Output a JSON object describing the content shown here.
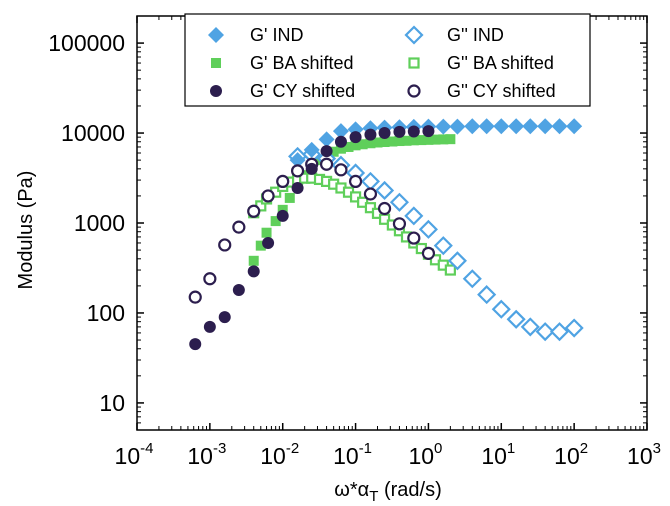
{
  "chart_data": {
    "type": "scatter",
    "xscale": "log",
    "yscale": "log",
    "xlim": [
      0.0001,
      1000
    ],
    "ylim": [
      5,
      200000
    ],
    "xlabel": "ω*α",
    "xlabel_sub": "T",
    "xlabel_unit": " (rad/s)",
    "ylabel": "Modulus (Pa)",
    "x_ticks": [
      {
        "value": 0.0001,
        "base": "10",
        "exp": "-4"
      },
      {
        "value": 0.001,
        "base": "10",
        "exp": "-3"
      },
      {
        "value": 0.01,
        "base": "10",
        "exp": "-2"
      },
      {
        "value": 0.1,
        "base": "10",
        "exp": "-1"
      },
      {
        "value": 1,
        "base": "10",
        "exp": "0"
      },
      {
        "value": 10,
        "base": "10",
        "exp": "1"
      },
      {
        "value": 100,
        "base": "10",
        "exp": "2"
      },
      {
        "value": 1000,
        "base": "10",
        "exp": "3"
      }
    ],
    "y_ticks": [
      {
        "value": 10,
        "label": "10"
      },
      {
        "value": 100,
        "label": "100"
      },
      {
        "value": 1000,
        "label": "1000"
      },
      {
        "value": 10000,
        "label": "10000"
      },
      {
        "value": 100000,
        "label": "100000"
      }
    ],
    "grid": false,
    "legend_position": "top",
    "series": [
      {
        "name": "G' IND",
        "marker": "diamond",
        "filled": true,
        "color": "#4fa3e3",
        "x": [
          0.016,
          0.025,
          0.04,
          0.063,
          0.1,
          0.16,
          0.25,
          0.4,
          0.63,
          1,
          1.6,
          2.5,
          4,
          6.3,
          10,
          16,
          25,
          40,
          63,
          100
        ],
        "y": [
          5000,
          6500,
          8500,
          10500,
          11000,
          11300,
          11500,
          11600,
          11700,
          11800,
          11800,
          11800,
          11900,
          11900,
          11900,
          11900,
          11900,
          11900,
          11900,
          11900
        ]
      },
      {
        "name": "G'' IND",
        "marker": "diamond",
        "filled": false,
        "color": "#4fa3e3",
        "x": [
          0.016,
          0.025,
          0.04,
          0.063,
          0.1,
          0.16,
          0.25,
          0.4,
          0.63,
          1,
          1.6,
          2.5,
          4,
          6.3,
          10,
          16,
          25,
          40,
          63,
          100
        ],
        "y": [
          5500,
          5800,
          5200,
          4400,
          3600,
          2900,
          2300,
          1700,
          1200,
          850,
          560,
          380,
          240,
          160,
          110,
          85,
          70,
          62,
          62,
          68
        ]
      },
      {
        "name": "G' BA shifted",
        "marker": "square",
        "filled": true,
        "color": "#5fcf5a",
        "x": [
          0.004,
          0.005,
          0.006,
          0.008,
          0.01,
          0.0125,
          0.016,
          0.02,
          0.025,
          0.032,
          0.04,
          0.05,
          0.063,
          0.08,
          0.1,
          0.125,
          0.16,
          0.2,
          0.25,
          0.32,
          0.4,
          0.5,
          0.63,
          0.8,
          1,
          1.25,
          1.6,
          2
        ],
        "y": [
          380,
          560,
          780,
          1050,
          1400,
          1900,
          2600,
          3400,
          4200,
          5000,
          5700,
          6200,
          6700,
          7000,
          7300,
          7500,
          7700,
          7850,
          7950,
          8050,
          8150,
          8200,
          8300,
          8350,
          8400,
          8450,
          8500,
          8550
        ]
      },
      {
        "name": "G'' BA shifted",
        "marker": "square",
        "filled": false,
        "color": "#5fcf5a",
        "x": [
          0.004,
          0.005,
          0.006,
          0.008,
          0.01,
          0.0125,
          0.016,
          0.02,
          0.025,
          0.032,
          0.04,
          0.05,
          0.063,
          0.08,
          0.1,
          0.125,
          0.16,
          0.2,
          0.25,
          0.32,
          0.4,
          0.5,
          0.63,
          0.8,
          1,
          1.25,
          1.6,
          2
        ],
        "y": [
          1300,
          1550,
          1850,
          2200,
          2550,
          2850,
          3050,
          3150,
          3150,
          3050,
          2900,
          2700,
          2450,
          2200,
          1950,
          1700,
          1480,
          1280,
          1100,
          950,
          820,
          700,
          600,
          520,
          450,
          390,
          340,
          300
        ]
      },
      {
        "name": "G' CY shifted",
        "marker": "circle",
        "filled": true,
        "color": "#2c1e4e",
        "x": [
          0.00063,
          0.001,
          0.0016,
          0.0025,
          0.004,
          0.0063,
          0.01,
          0.016,
          0.025,
          0.04,
          0.063,
          0.1,
          0.16,
          0.25,
          0.4,
          0.63,
          1
        ],
        "y": [
          45,
          70,
          90,
          180,
          290,
          600,
          1200,
          2450,
          4000,
          6300,
          8000,
          9000,
          9600,
          10000,
          10300,
          10400,
          10500
        ]
      },
      {
        "name": "G'' CY shifted",
        "marker": "circle",
        "filled": false,
        "color": "#2c1e4e",
        "x": [
          0.00063,
          0.001,
          0.0016,
          0.0025,
          0.004,
          0.0063,
          0.01,
          0.016,
          0.025,
          0.04,
          0.063,
          0.1,
          0.16,
          0.25,
          0.4,
          0.63,
          1
        ],
        "y": [
          150,
          240,
          570,
          900,
          1350,
          2000,
          2900,
          3800,
          4500,
          4500,
          3900,
          2900,
          2100,
          1450,
          980,
          680,
          460
        ]
      }
    ]
  }
}
